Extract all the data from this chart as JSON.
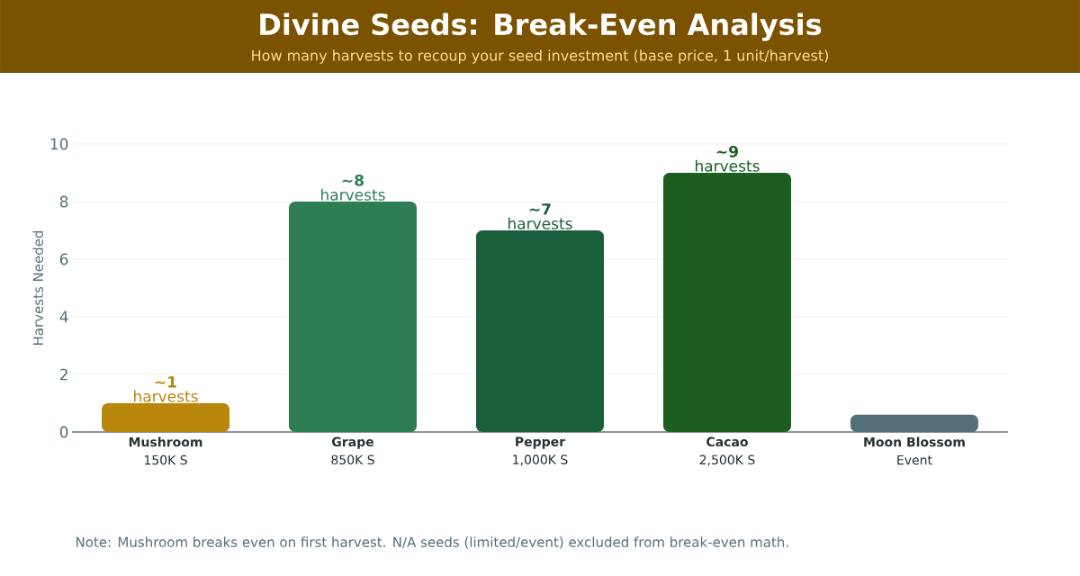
{
  "chart_data": {
    "type": "bar",
    "title": "Divine Seeds: Break-Even Analysis",
    "subtitle": "How many harvests to recoup your seed investment (base price, 1 unit/harvest)",
    "ylabel": "Harvests Needed",
    "categories": [
      "**Mushroom** 150K S",
      "**Grape** 850K S",
      "**Pepper** 1,000K S",
      "**Cacao** 2,500K S",
      "**Moon Blossom** Event"
    ],
    "values": [
      1,
      8,
      7,
      9,
      0.6
    ],
    "colors": [
      "#b8860b",
      "#2e7d55",
      "#1b5e3b",
      "#1b5e20",
      "#546e7a"
    ],
    "value_labels": [
      "**~1** harvests",
      "**~8** harvests",
      "**~7** harvests",
      "**~9** harvests",
      null
    ],
    "ylim": [
      0,
      10
    ],
    "yticks": [
      0,
      2,
      4,
      6,
      8,
      10
    ],
    "grid": "y",
    "annotations": [
      "Note: Mushroom breaks even on first harvest. N/A seeds (limited/event) excluded from break-even math."
    ]
  }
}
